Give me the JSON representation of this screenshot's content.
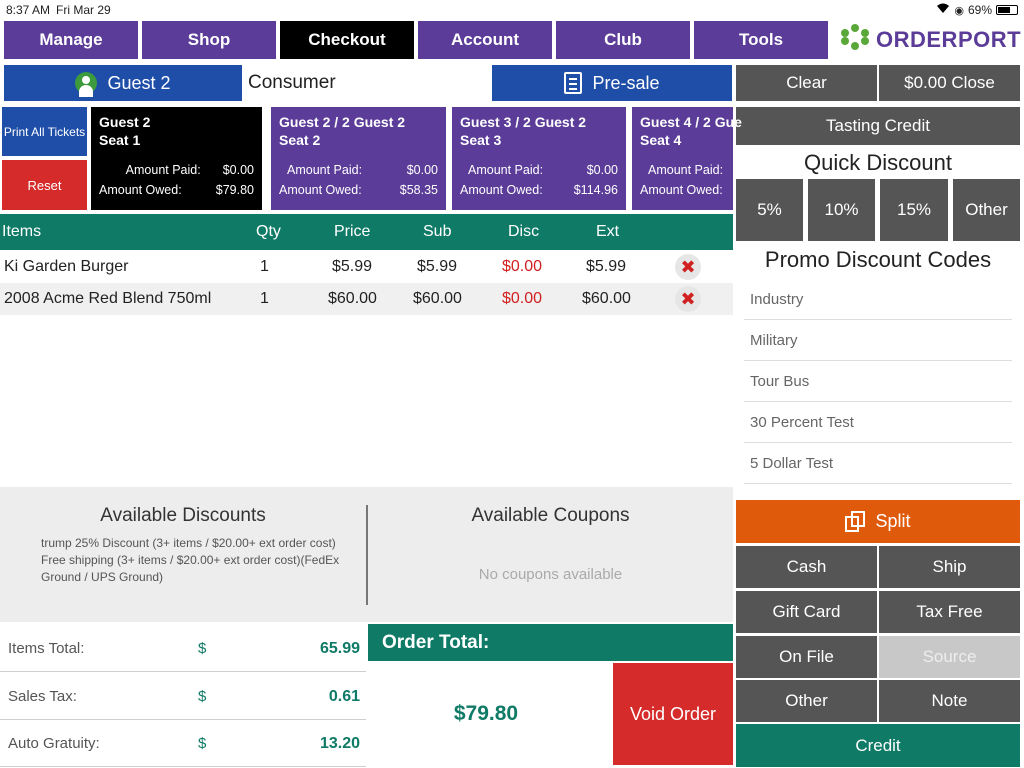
{
  "status_bar": {
    "time": "8:37 AM",
    "date": "Fri Mar 29",
    "battery": "69%",
    "battery_level": 0.69
  },
  "nav": {
    "tabs": [
      "Manage",
      "Shop",
      "Checkout",
      "Account",
      "Club",
      "Tools"
    ],
    "active": "Checkout"
  },
  "logo": {
    "text": "ORDERPORT"
  },
  "guest": {
    "button_label": "Guest 2",
    "customer_type": "Consumer",
    "presale_label": "Pre-sale"
  },
  "left_actions": {
    "print_all": "Print All Tickets",
    "reset": "Reset"
  },
  "guest_cards": [
    {
      "title1": "Guest 2",
      "title2": "Seat 1",
      "paid_label": "Amount Paid:",
      "paid": "$0.00",
      "owed_label": "Amount Owed:",
      "owed": "$79.80"
    },
    {
      "title1": "Guest 2 / 2 Guest 2",
      "title2": "Seat 2",
      "paid_label": "Amount Paid:",
      "paid": "$0.00",
      "owed_label": "Amount Owed:",
      "owed": "$58.35"
    },
    {
      "title1": "Guest 3 / 2 Guest 2",
      "title2": "Seat 3",
      "paid_label": "Amount Paid:",
      "paid": "$0.00",
      "owed_label": "Amount Owed:",
      "owed": "$114.96"
    },
    {
      "title1": "Guest 4 / 2 Gue",
      "title2": "Seat 4",
      "paid_label": "Amount Paid:",
      "paid": "",
      "owed_label": "Amount Owed:",
      "owed": ""
    }
  ],
  "items_table": {
    "headers": {
      "items": "Items",
      "qty": "Qty",
      "price": "Price",
      "sub": "Sub",
      "disc": "Disc",
      "ext": "Ext"
    },
    "rows": [
      {
        "name": "Ki Garden Burger",
        "qty": "1",
        "price": "$5.99",
        "sub": "$5.99",
        "disc": "$0.00",
        "ext": "$5.99"
      },
      {
        "name": "2008 Acme Red Blend 750ml",
        "qty": "1",
        "price": "$60.00",
        "sub": "$60.00",
        "disc": "$0.00",
        "ext": "$60.00"
      }
    ],
    "delete_glyph": "✖"
  },
  "discounts": {
    "title": "Available Discounts",
    "line1": "trump 25% Discount (3+ items / $20.00+ ext order cost)",
    "line2": "Free shipping (3+ items / $20.00+ ext order cost)(FedEx",
    "line3": "Ground / UPS Ground)"
  },
  "coupons": {
    "title": "Available Coupons",
    "empty": "No coupons available"
  },
  "totals": [
    {
      "label": "Items Total:",
      "currency": "$",
      "value": "65.99"
    },
    {
      "label": "Sales Tax:",
      "currency": "$",
      "value": "0.61"
    },
    {
      "label": "Auto Gratuity:",
      "currency": "$",
      "value": "13.20"
    }
  ],
  "order_total": {
    "label": "Order Total:",
    "value": "$79.80",
    "void_label": "Void Order"
  },
  "right_panel": {
    "clear": "Clear",
    "close": "$0.00 Close",
    "tasting_credit": "Tasting Credit",
    "quick_discount_title": "Quick Discount",
    "quick_discounts": [
      "5%",
      "10%",
      "15%",
      "Other"
    ],
    "promo_title": "Promo Discount Codes",
    "promo_codes": [
      "Industry",
      "Military",
      "Tour Bus",
      "30 Percent Test",
      "5 Dollar Test"
    ],
    "split": "Split",
    "payments": [
      "Cash",
      "Ship",
      "Gift Card",
      "Tax Free",
      "On File",
      "Source",
      "Other",
      "Note"
    ],
    "credit": "Credit"
  },
  "colors": {
    "purple": "#5b3c98",
    "blue": "#1f4ea8",
    "teal": "#0f7a66",
    "red": "#d62b2b",
    "orange": "#e05a0c",
    "grey": "#555555"
  }
}
